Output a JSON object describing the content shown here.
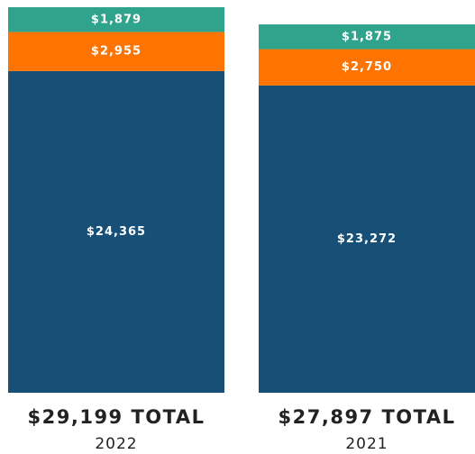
{
  "chart_data": {
    "type": "stacked_bar",
    "categories": [
      "2022",
      "2021"
    ],
    "totals": [
      "$29,199 TOTAL",
      "$27,897 TOTAL"
    ],
    "series": [
      {
        "color": "#174f77",
        "values": [
          24365,
          23272
        ],
        "value_labels": [
          "$24,365",
          "$23,272"
        ]
      },
      {
        "color": "#ff7400",
        "values": [
          2955,
          2750
        ],
        "value_labels": [
          "$2,955",
          "$2,750"
        ]
      },
      {
        "color": "#2fa38c",
        "values": [
          1879,
          1875
        ],
        "value_labels": [
          "$1,879",
          "$1,875"
        ]
      }
    ]
  }
}
